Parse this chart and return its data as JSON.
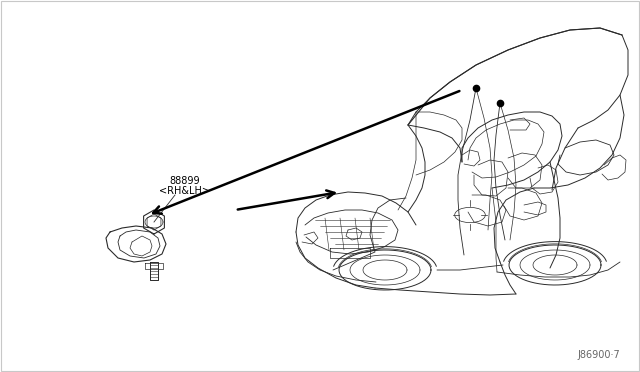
{
  "bg_color": "#ffffff",
  "border_color": "#c8c8c8",
  "line_color": "#2a2a2a",
  "part_label": "88899",
  "part_sublabel": "<RH&LH>",
  "ref_number": "J86900·7",
  "fig_width": 6.4,
  "fig_height": 3.72,
  "dpi": 100,
  "car_scale": 1.0
}
